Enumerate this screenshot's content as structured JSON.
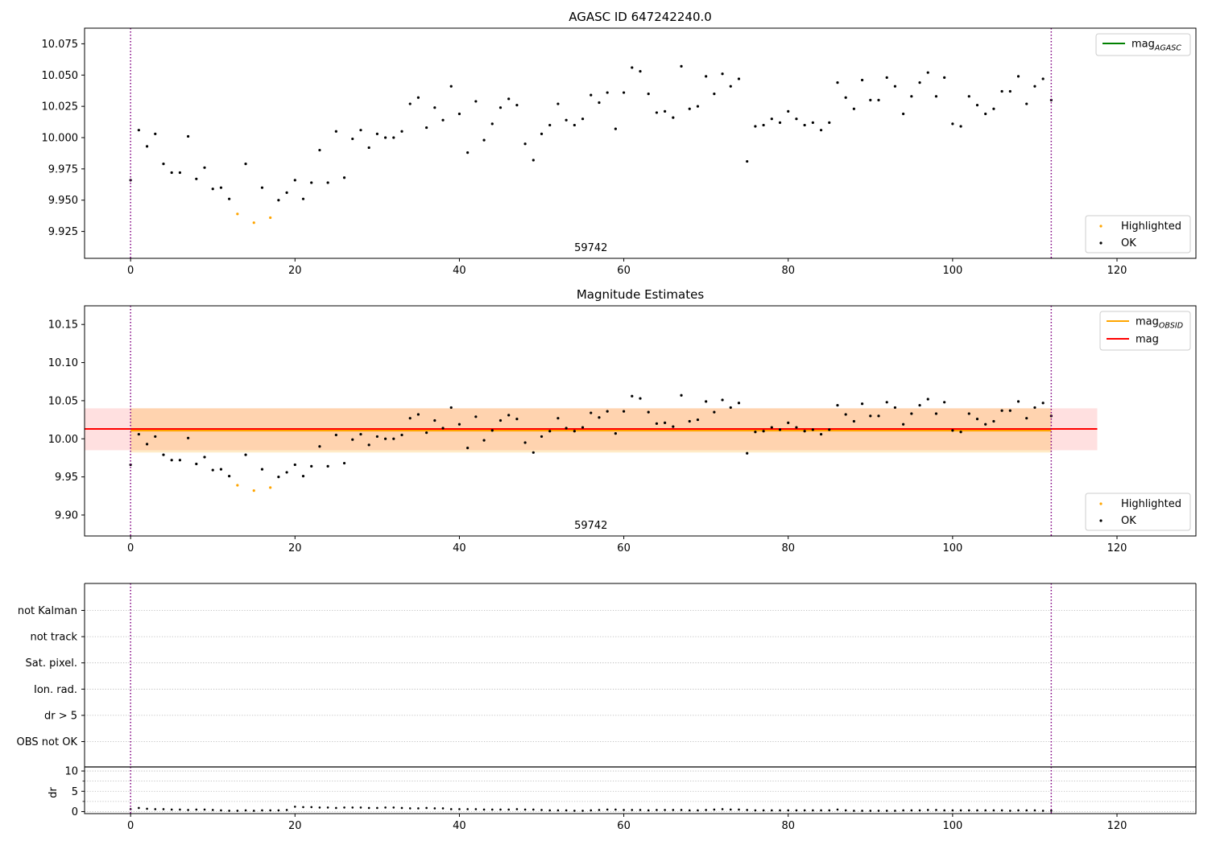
{
  "colors": {
    "ok": "#000000",
    "highlighted": "#ffa500",
    "mag_agasc": "#008000",
    "mag_obsid": "#ffa500",
    "mag": "#ff0000",
    "vline": "#800080",
    "grid": "#b0b0b0"
  },
  "chart_data": [
    {
      "type": "scatter",
      "title": "AGASC ID 647242240.0",
      "xlim": [
        -5.6,
        129.6
      ],
      "ylim": [
        9.9035,
        10.0875
      ],
      "xticks": [
        0,
        20,
        40,
        60,
        80,
        100,
        120
      ],
      "yticks": [
        9.925,
        9.95,
        9.975,
        10.0,
        10.025,
        10.05,
        10.075
      ],
      "ytick_labels": [
        "9.925",
        "9.950",
        "9.975",
        "10.000",
        "10.025",
        "10.050",
        "10.075"
      ],
      "vlines": [
        0,
        112
      ],
      "annotation": {
        "text": "59742",
        "x": 56
      },
      "lines": [
        {
          "name": "mag",
          "name_sub": "AGASC",
          "color_key": "mag_agasc"
        }
      ],
      "line_legend": "top-right",
      "point_legend": "bottom-right",
      "point_legend_entries": [
        "Highlighted",
        "OK"
      ],
      "ok": {
        "x": [
          0,
          1,
          2,
          3,
          4,
          5,
          6,
          7,
          8,
          9,
          10,
          11,
          12,
          14,
          16,
          18,
          19,
          20,
          21,
          22,
          23,
          24,
          25,
          26,
          27,
          28,
          29,
          30,
          31,
          32,
          33,
          34,
          35,
          36,
          37,
          38,
          39,
          40,
          41,
          42,
          43,
          44,
          45,
          46,
          47,
          48,
          49,
          50,
          51,
          52,
          53,
          54,
          55,
          56,
          57,
          58,
          59,
          60,
          61,
          62,
          63,
          64,
          65,
          66,
          67,
          68,
          69,
          70,
          71,
          72,
          73,
          74,
          75,
          76,
          77,
          78,
          79,
          80,
          81,
          82,
          83,
          84,
          85,
          86,
          87,
          88,
          89,
          90,
          91,
          92,
          93,
          94,
          95,
          96,
          97,
          98,
          99,
          100,
          101,
          102,
          103,
          104,
          105,
          106,
          107,
          108,
          109,
          110,
          111,
          112
        ],
        "y": [
          9.966,
          10.006,
          9.993,
          10.003,
          9.979,
          9.972,
          9.972,
          10.001,
          9.967,
          9.976,
          9.959,
          9.96,
          9.951,
          9.979,
          9.96,
          9.95,
          9.956,
          9.966,
          9.951,
          9.964,
          9.99,
          9.964,
          10.005,
          9.968,
          9.999,
          10.006,
          9.992,
          10.003,
          10.0,
          10.0,
          10.005,
          10.027,
          10.032,
          10.008,
          10.024,
          10.014,
          10.041,
          10.019,
          9.988,
          10.029,
          9.998,
          10.011,
          10.024,
          10.031,
          10.026,
          9.995,
          9.982,
          10.003,
          10.01,
          10.027,
          10.014,
          10.01,
          10.015,
          10.034,
          10.028,
          10.036,
          10.007,
          10.036,
          10.056,
          10.053,
          10.035,
          10.02,
          10.021,
          10.016,
          10.057,
          10.023,
          10.025,
          10.049,
          10.035,
          10.051,
          10.041,
          10.047,
          9.981,
          10.009,
          10.01,
          10.015,
          10.012,
          10.021,
          10.015,
          10.01,
          10.012,
          10.006,
          10.012,
          10.044,
          10.032,
          10.023,
          10.046,
          10.03,
          10.03,
          10.048,
          10.041,
          10.019,
          10.033,
          10.044,
          10.052,
          10.033,
          10.048,
          10.011,
          10.009,
          10.033,
          10.026,
          10.019,
          10.023,
          10.037,
          10.037,
          10.049,
          10.027,
          10.041,
          10.047,
          10.03
        ]
      },
      "highlighted": {
        "x": [
          13,
          15,
          17
        ],
        "y": [
          9.939,
          9.932,
          9.936
        ]
      }
    },
    {
      "type": "scatter",
      "title": "Magnitude Estimates",
      "xlim": [
        -5.6,
        129.6
      ],
      "ylim": [
        9.8725,
        10.1745
      ],
      "xticks": [
        0,
        20,
        40,
        60,
        80,
        100,
        120
      ],
      "yticks": [
        9.9,
        9.95,
        10.0,
        10.05,
        10.1,
        10.15
      ],
      "ytick_labels": [
        "9.90",
        "9.95",
        "10.00",
        "10.05",
        "10.10",
        "10.15"
      ],
      "vlines": [
        0,
        112
      ],
      "annotation": {
        "text": "59742",
        "x": 56
      },
      "lines": [
        {
          "name": "mag",
          "name_sub": "OBSID",
          "color_key": "mag_obsid",
          "y": 10.011,
          "x_range": [
            0,
            112
          ],
          "band": [
            9.982,
            10.04
          ]
        },
        {
          "name": "mag",
          "name_sub": "",
          "color_key": "mag",
          "y": 10.013,
          "x_range": [
            -5.6,
            117.6
          ],
          "band": [
            9.985,
            10.04
          ]
        }
      ],
      "line_legend": "top-right",
      "point_legend": "bottom-right",
      "point_legend_entries": [
        "Highlighted",
        "OK"
      ],
      "ok": {
        "x": [
          0,
          1,
          2,
          3,
          4,
          5,
          6,
          7,
          8,
          9,
          10,
          11,
          12,
          14,
          16,
          18,
          19,
          20,
          21,
          22,
          23,
          24,
          25,
          26,
          27,
          28,
          29,
          30,
          31,
          32,
          33,
          34,
          35,
          36,
          37,
          38,
          39,
          40,
          41,
          42,
          43,
          44,
          45,
          46,
          47,
          48,
          49,
          50,
          51,
          52,
          53,
          54,
          55,
          56,
          57,
          58,
          59,
          60,
          61,
          62,
          63,
          64,
          65,
          66,
          67,
          68,
          69,
          70,
          71,
          72,
          73,
          74,
          75,
          76,
          77,
          78,
          79,
          80,
          81,
          82,
          83,
          84,
          85,
          86,
          87,
          88,
          89,
          90,
          91,
          92,
          93,
          94,
          95,
          96,
          97,
          98,
          99,
          100,
          101,
          102,
          103,
          104,
          105,
          106,
          107,
          108,
          109,
          110,
          111,
          112
        ],
        "y": [
          9.966,
          10.006,
          9.993,
          10.003,
          9.979,
          9.972,
          9.972,
          10.001,
          9.967,
          9.976,
          9.959,
          9.96,
          9.951,
          9.979,
          9.96,
          9.95,
          9.956,
          9.966,
          9.951,
          9.964,
          9.99,
          9.964,
          10.005,
          9.968,
          9.999,
          10.006,
          9.992,
          10.003,
          10.0,
          10.0,
          10.005,
          10.027,
          10.032,
          10.008,
          10.024,
          10.014,
          10.041,
          10.019,
          9.988,
          10.029,
          9.998,
          10.011,
          10.024,
          10.031,
          10.026,
          9.995,
          9.982,
          10.003,
          10.01,
          10.027,
          10.014,
          10.01,
          10.015,
          10.034,
          10.028,
          10.036,
          10.007,
          10.036,
          10.056,
          10.053,
          10.035,
          10.02,
          10.021,
          10.016,
          10.057,
          10.023,
          10.025,
          10.049,
          10.035,
          10.051,
          10.041,
          10.047,
          9.981,
          10.009,
          10.01,
          10.015,
          10.012,
          10.021,
          10.015,
          10.01,
          10.012,
          10.006,
          10.012,
          10.044,
          10.032,
          10.023,
          10.046,
          10.03,
          10.03,
          10.048,
          10.041,
          10.019,
          10.033,
          10.044,
          10.052,
          10.033,
          10.048,
          10.011,
          10.009,
          10.033,
          10.026,
          10.019,
          10.023,
          10.037,
          10.037,
          10.049,
          10.027,
          10.041,
          10.047,
          10.03
        ]
      },
      "highlighted": {
        "x": [
          13,
          15,
          17
        ],
        "y": [
          9.939,
          9.932,
          9.936
        ]
      }
    },
    {
      "type": "scatter",
      "xlim": [
        -5.6,
        129.6
      ],
      "categories": [
        "not Kalman",
        "not track",
        "Sat. pixel.",
        "Ion. rad.",
        "dr > 5",
        "OBS not OK"
      ],
      "vlines": [
        0,
        112
      ],
      "grid": "horizontal-dotted"
    },
    {
      "type": "scatter",
      "ylabel": "dr",
      "xlim": [
        -5.6,
        129.6
      ],
      "ylim": [
        -0.5,
        11
      ],
      "xticks": [
        0,
        20,
        40,
        60,
        80,
        100,
        120
      ],
      "yticks": [
        0,
        5,
        10
      ],
      "ytick_labels": [
        "0",
        "5",
        "10"
      ],
      "minor_yticks": [
        2.5,
        7.5
      ],
      "vlines": [
        0,
        112
      ],
      "ok": {
        "x": [
          0,
          1,
          2,
          3,
          4,
          5,
          6,
          7,
          8,
          9,
          10,
          11,
          12,
          13,
          14,
          15,
          16,
          17,
          18,
          19,
          20,
          21,
          22,
          23,
          24,
          25,
          26,
          27,
          28,
          29,
          30,
          31,
          32,
          33,
          34,
          35,
          36,
          37,
          38,
          39,
          40,
          41,
          42,
          43,
          44,
          45,
          46,
          47,
          48,
          49,
          50,
          51,
          52,
          53,
          54,
          55,
          56,
          57,
          58,
          59,
          60,
          61,
          62,
          63,
          64,
          65,
          66,
          67,
          68,
          69,
          70,
          71,
          72,
          73,
          74,
          75,
          76,
          77,
          78,
          79,
          80,
          81,
          82,
          83,
          84,
          85,
          86,
          87,
          88,
          89,
          90,
          91,
          92,
          93,
          94,
          95,
          96,
          97,
          98,
          99,
          100,
          101,
          102,
          103,
          104,
          105,
          106,
          107,
          108,
          109,
          110,
          111,
          112
        ],
        "y": [
          0.6,
          0.9,
          0.7,
          0.6,
          0.6,
          0.5,
          0.5,
          0.4,
          0.5,
          0.5,
          0.4,
          0.3,
          0.2,
          0.2,
          0.3,
          0.2,
          0.3,
          0.3,
          0.3,
          0.4,
          1.2,
          1.1,
          1.1,
          1.0,
          1.0,
          0.9,
          1.0,
          1.0,
          1.0,
          0.9,
          0.9,
          1.0,
          1.0,
          0.9,
          0.8,
          0.8,
          0.9,
          0.8,
          0.8,
          0.6,
          0.6,
          0.6,
          0.6,
          0.5,
          0.5,
          0.5,
          0.5,
          0.6,
          0.5,
          0.5,
          0.4,
          0.3,
          0.3,
          0.3,
          0.2,
          0.2,
          0.3,
          0.4,
          0.5,
          0.5,
          0.4,
          0.4,
          0.4,
          0.3,
          0.4,
          0.4,
          0.4,
          0.4,
          0.3,
          0.3,
          0.4,
          0.5,
          0.6,
          0.5,
          0.5,
          0.4,
          0.3,
          0.3,
          0.3,
          0.3,
          0.3,
          0.3,
          0.3,
          0.3,
          0.3,
          0.3,
          0.5,
          0.3,
          0.2,
          0.2,
          0.2,
          0.2,
          0.2,
          0.2,
          0.3,
          0.3,
          0.3,
          0.4,
          0.4,
          0.3,
          0.3,
          0.3,
          0.3,
          0.3,
          0.3,
          0.3,
          0.3,
          0.2,
          0.3,
          0.3,
          0.3,
          0.2,
          0.2
        ]
      }
    }
  ]
}
